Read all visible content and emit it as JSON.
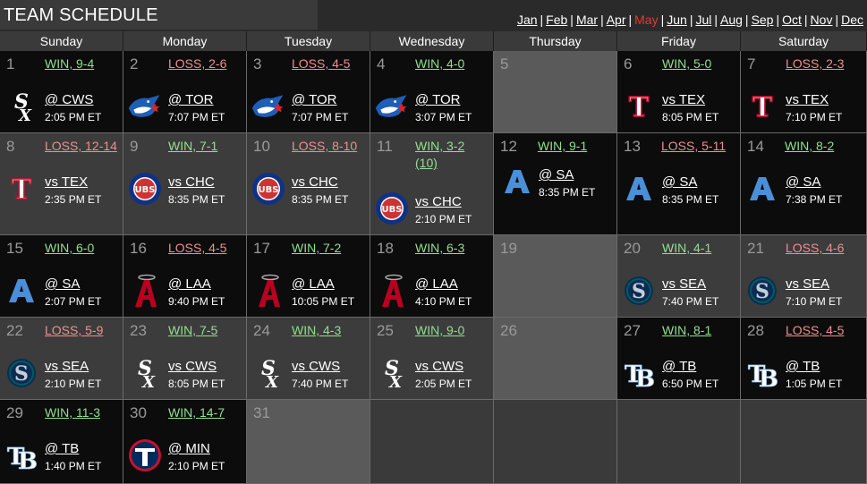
{
  "header": {
    "title": "TEAM SCHEDULE",
    "months": [
      "Jan",
      "Feb",
      "Mar",
      "Apr",
      "May",
      "Jun",
      "Jul",
      "Aug",
      "Sep",
      "Oct",
      "Nov",
      "Dec"
    ],
    "active_month": "May"
  },
  "days_of_week": [
    "Sunday",
    "Monday",
    "Tuesday",
    "Wednesday",
    "Thursday",
    "Friday",
    "Saturday"
  ],
  "games": {
    "1": {
      "result": "WIN, 9-4",
      "outcome": "win",
      "opponent": "@ CWS",
      "time": "2:05 PM ET",
      "logo": "white-sox-logo-icon"
    },
    "2": {
      "result": "LOSS, 2-6",
      "outcome": "loss",
      "opponent": "@ TOR",
      "time": "7:07 PM ET",
      "logo": "blue-jays-logo-icon"
    },
    "3": {
      "result": "LOSS, 4-5",
      "outcome": "loss",
      "opponent": "@ TOR",
      "time": "7:07 PM ET",
      "logo": "blue-jays-logo-icon"
    },
    "4": {
      "result": "WIN, 4-0",
      "outcome": "win",
      "opponent": "@ TOR",
      "time": "3:07 PM ET",
      "logo": "blue-jays-logo-icon"
    },
    "6": {
      "result": "WIN, 5-0",
      "outcome": "win",
      "opponent": "vs TEX",
      "time": "8:05 PM ET",
      "logo": "rangers-logo-icon"
    },
    "7": {
      "result": "LOSS, 2-3",
      "outcome": "loss",
      "opponent": "vs TEX",
      "time": "7:10 PM ET",
      "logo": "rangers-logo-icon"
    },
    "8": {
      "result": "LOSS, 12-14",
      "outcome": "loss",
      "opponent": "vs TEX",
      "time": "2:35 PM ET",
      "logo": "rangers-logo-icon"
    },
    "9": {
      "result": "WIN, 7-1",
      "outcome": "win",
      "opponent": "vs CHC",
      "time": "8:35 PM ET",
      "logo": "cubs-logo-icon"
    },
    "10": {
      "result": "LOSS, 8-10",
      "outcome": "loss",
      "opponent": "vs CHC",
      "time": "8:35 PM ET",
      "logo": "cubs-logo-icon"
    },
    "11": {
      "result": "WIN, 3-2",
      "result_extra": "(10)",
      "outcome": "win",
      "opponent": "vs CHC",
      "time": "2:10 PM ET",
      "logo": "cubs-logo-icon"
    },
    "12": {
      "result": "WIN, 9-1",
      "outcome": "win",
      "opponent": "@ SA",
      "time": "8:35 PM ET",
      "logo": "sa-logo-icon"
    },
    "13": {
      "result": "LOSS, 5-11",
      "outcome": "loss",
      "opponent": "@ SA",
      "time": "8:35 PM ET",
      "logo": "sa-logo-icon"
    },
    "14": {
      "result": "WIN, 8-2",
      "outcome": "win",
      "opponent": "@ SA",
      "time": "7:38 PM ET",
      "logo": "sa-logo-icon"
    },
    "15": {
      "result": "WIN, 6-0",
      "outcome": "win",
      "opponent": "@ SA",
      "time": "2:07 PM ET",
      "logo": "sa-logo-icon"
    },
    "16": {
      "result": "LOSS, 4-5",
      "outcome": "loss",
      "opponent": "@ LAA",
      "time": "9:40 PM ET",
      "logo": "angels-logo-icon"
    },
    "17": {
      "result": "WIN, 7-2",
      "outcome": "win",
      "opponent": "@ LAA",
      "time": "10:05 PM ET",
      "logo": "angels-logo-icon"
    },
    "18": {
      "result": "WIN, 6-3",
      "outcome": "win",
      "opponent": "@ LAA",
      "time": "4:10 PM ET",
      "logo": "angels-logo-icon"
    },
    "20": {
      "result": "WIN, 4-1",
      "outcome": "win",
      "opponent": "vs SEA",
      "time": "7:40 PM ET",
      "logo": "mariners-logo-icon"
    },
    "21": {
      "result": "LOSS, 4-6",
      "outcome": "loss",
      "opponent": "vs SEA",
      "time": "7:10 PM ET",
      "logo": "mariners-logo-icon"
    },
    "22": {
      "result": "LOSS, 5-9",
      "outcome": "loss",
      "opponent": "vs SEA",
      "time": "2:10 PM ET",
      "logo": "mariners-logo-icon"
    },
    "23": {
      "result": "WIN, 7-5",
      "outcome": "win",
      "opponent": "vs CWS",
      "time": "8:05 PM ET",
      "logo": "white-sox-logo-icon"
    },
    "24": {
      "result": "WIN, 4-3",
      "outcome": "win",
      "opponent": "vs CWS",
      "time": "7:40 PM ET",
      "logo": "white-sox-logo-icon"
    },
    "25": {
      "result": "WIN, 9-0",
      "outcome": "win",
      "opponent": "vs CWS",
      "time": "2:05 PM ET",
      "logo": "white-sox-logo-icon"
    },
    "27": {
      "result": "WIN, 8-1",
      "outcome": "win",
      "opponent": "@ TB",
      "time": "6:50 PM ET",
      "logo": "rays-logo-icon"
    },
    "28": {
      "result": "LOSS, 4-5",
      "outcome": "loss",
      "opponent": "@ TB",
      "time": "1:05 PM ET",
      "logo": "rays-logo-icon"
    },
    "29": {
      "result": "WIN, 11-3",
      "outcome": "win",
      "opponent": "@ TB",
      "time": "1:40 PM ET",
      "logo": "rays-logo-icon"
    },
    "30": {
      "result": "WIN, 14-7",
      "outcome": "win",
      "opponent": "@ MIN",
      "time": "2:10 PM ET",
      "logo": "twins-logo-icon"
    }
  },
  "colors": {
    "win": "#8fe08f",
    "loss": "#ef8f8f",
    "active_month": "#e53935",
    "cell_dark": "#0c0c0c",
    "cell_mid": "#3c3c3c",
    "cell_empty": "#5a5a5a"
  }
}
